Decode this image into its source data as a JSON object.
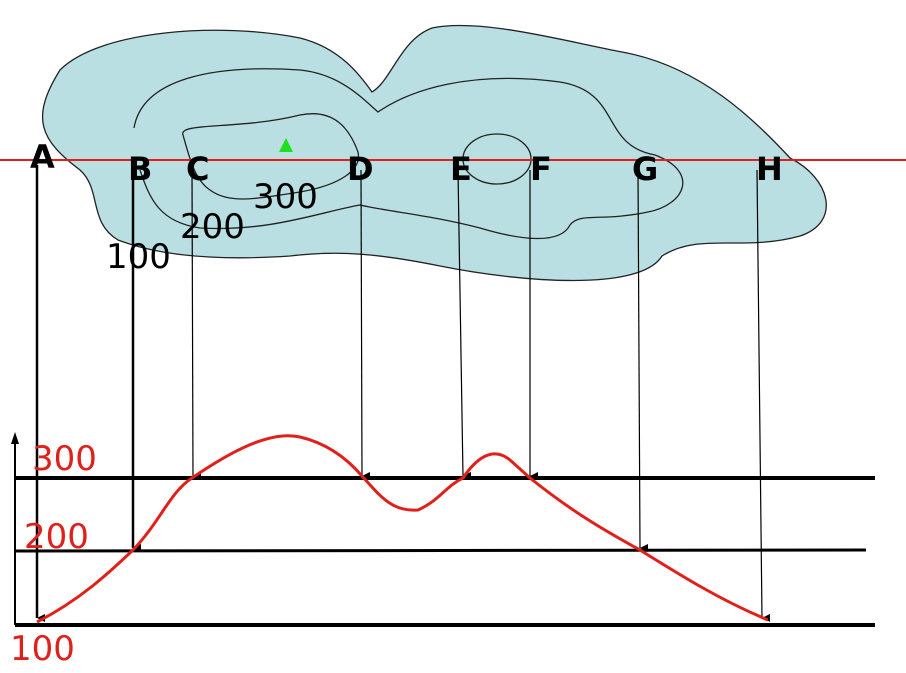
{
  "points": [
    "A",
    "B",
    "C",
    "D",
    "E",
    "F",
    "G",
    "H"
  ],
  "contour_labels": [
    "100",
    "200",
    "300"
  ],
  "profile_labels": [
    "300",
    "200",
    "100"
  ]
}
